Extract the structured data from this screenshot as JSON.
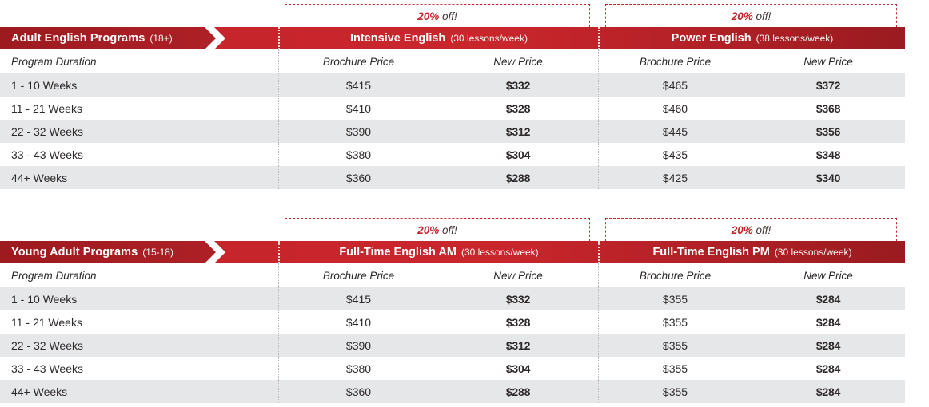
{
  "colors": {
    "banner_red": "#c5242b",
    "banner_dark_red": "#9a1b20",
    "category_red": "#9d1a1f",
    "price_red": "#c2262d",
    "row_gray": "#e6e7e8",
    "text_dark": "#2b2727"
  },
  "discount": {
    "percent": "20%",
    "suffix": " off!"
  },
  "tables": [
    {
      "category": "Adult English Programs",
      "category_note": "(18+)",
      "duration_header": "Program Duration",
      "sections": [
        {
          "title": "Intensive English",
          "subtitle": "(30 lessons/week)",
          "col_brochure": "Brochure Price",
          "col_new": "New Price"
        },
        {
          "title": "Power English",
          "subtitle": "(38 lessons/week)",
          "col_brochure": "Brochure Price",
          "col_new": "New Price"
        }
      ],
      "rows": [
        {
          "duration": "1 - 10 Weeks",
          "s1_brochure": "$415",
          "s1_new": "$332",
          "s2_brochure": "$465",
          "s2_new": "$372"
        },
        {
          "duration": "11 - 21 Weeks",
          "s1_brochure": "$410",
          "s1_new": "$328",
          "s2_brochure": "$460",
          "s2_new": "$368"
        },
        {
          "duration": "22 - 32 Weeks",
          "s1_brochure": "$390",
          "s1_new": "$312",
          "s2_brochure": "$445",
          "s2_new": "$356"
        },
        {
          "duration": "33 - 43 Weeks",
          "s1_brochure": "$380",
          "s1_new": "$304",
          "s2_brochure": "$435",
          "s2_new": "$348"
        },
        {
          "duration": "44+ Weeks",
          "s1_brochure": "$360",
          "s1_new": "$288",
          "s2_brochure": "$425",
          "s2_new": "$340"
        }
      ]
    },
    {
      "category": "Young Adult Programs",
      "category_note": "(15-18)",
      "duration_header": "Program Duration",
      "sections": [
        {
          "title": "Full-Time English AM",
          "subtitle": "(30 lessons/week)",
          "col_brochure": "Brochure Price",
          "col_new": "New Price"
        },
        {
          "title": "Full-Time English PM",
          "subtitle": "(30 lessons/week)",
          "col_brochure": "Brochure Price",
          "col_new": "New Price"
        }
      ],
      "rows": [
        {
          "duration": "1 - 10 Weeks",
          "s1_brochure": "$415",
          "s1_new": "$332",
          "s2_brochure": "$355",
          "s2_new": "$284"
        },
        {
          "duration": "11 - 21 Weeks",
          "s1_brochure": "$410",
          "s1_new": "$328",
          "s2_brochure": "$355",
          "s2_new": "$284"
        },
        {
          "duration": "22 - 32 Weeks",
          "s1_brochure": "$390",
          "s1_new": "$312",
          "s2_brochure": "$355",
          "s2_new": "$284"
        },
        {
          "duration": "33 - 43 Weeks",
          "s1_brochure": "$380",
          "s1_new": "$304",
          "s2_brochure": "$355",
          "s2_new": "$284"
        },
        {
          "duration": "44+ Weeks",
          "s1_brochure": "$360",
          "s1_new": "$288",
          "s2_brochure": "$355",
          "s2_new": "$284"
        }
      ]
    }
  ]
}
